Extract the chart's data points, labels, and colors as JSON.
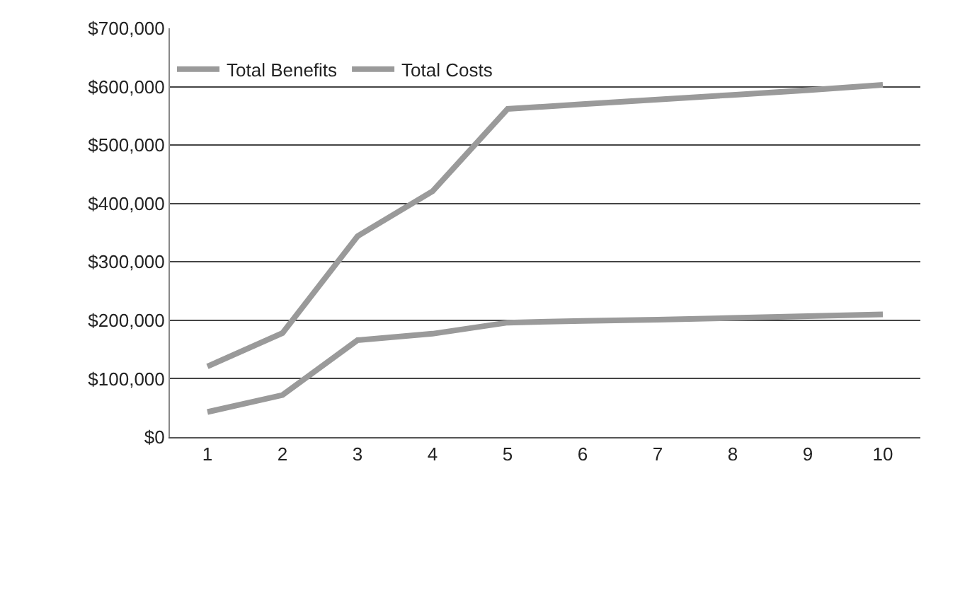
{
  "chart_data": {
    "type": "line",
    "categories": [
      "1",
      "2",
      "3",
      "4",
      "5",
      "6",
      "7",
      "8",
      "9",
      "10"
    ],
    "series": [
      {
        "name": "Total Benefits",
        "color": "#9a9a9a",
        "values": [
          121000,
          178000,
          344000,
          421000,
          562000,
          570000,
          578000,
          586000,
          594000,
          603000
        ]
      },
      {
        "name": "Total Costs",
        "color": "#9a9a9a",
        "values": [
          43000,
          72000,
          166000,
          177000,
          196000,
          199000,
          201000,
          204000,
          207000,
          210000
        ]
      }
    ],
    "ylim": [
      0,
      700000
    ],
    "yticks": [
      {
        "value": 0,
        "label": "$0"
      },
      {
        "value": 100000,
        "label": "$100,000"
      },
      {
        "value": 200000,
        "label": "$200,000"
      },
      {
        "value": 300000,
        "label": "$300,000"
      },
      {
        "value": 400000,
        "label": "$400,000"
      },
      {
        "value": 500000,
        "label": "$500,000"
      },
      {
        "value": 600000,
        "label": "$600,000"
      },
      {
        "value": 700000,
        "label": "$700,000"
      }
    ],
    "grid": "y",
    "legend": "top left",
    "marker": "none",
    "line_style": "solid"
  }
}
